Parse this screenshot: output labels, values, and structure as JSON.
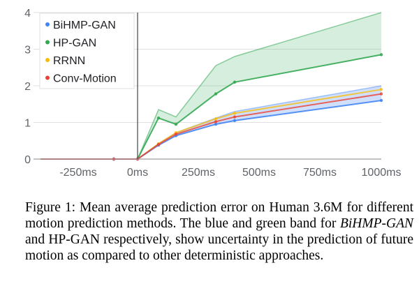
{
  "chart_data": {
    "type": "line",
    "x_ticks": [
      "-250ms",
      "0ms",
      "250ms",
      "500ms",
      "750ms",
      "1000ms"
    ],
    "y_ticks": [
      "0",
      "1",
      "2",
      "3",
      "4"
    ],
    "xlim": [
      -450,
      1000
    ],
    "ylim": [
      0,
      4
    ],
    "grid": true,
    "legend_position": "top-left",
    "series": [
      {
        "name": "BiHMP-GAN",
        "color": "#4285f4",
        "x": [
          -450,
          -100,
          0,
          80,
          160,
          320,
          400,
          1000
        ],
        "values": [
          0,
          0,
          0,
          0.38,
          0.64,
          0.95,
          1.05,
          1.6
        ],
        "band_upper": [
          0,
          0,
          0,
          0.42,
          0.72,
          1.12,
          1.3,
          2.0
        ]
      },
      {
        "name": "HP-GAN",
        "color": "#34a853",
        "x": [
          -450,
          -100,
          0,
          80,
          160,
          320,
          400,
          1000
        ],
        "values": [
          0,
          0,
          0,
          1.12,
          0.95,
          1.78,
          2.1,
          2.85
        ],
        "band_lower": [
          0,
          0,
          0,
          1.12,
          0.95,
          1.78,
          2.1,
          2.85
        ],
        "band_upper": [
          0,
          0,
          0,
          1.35,
          1.15,
          2.55,
          2.8,
          4.0
        ]
      },
      {
        "name": "RRNN",
        "color": "#fbbc04",
        "x": [
          -450,
          -100,
          0,
          80,
          160,
          320,
          400,
          1000
        ],
        "values": [
          0,
          0,
          0,
          0.42,
          0.72,
          1.1,
          1.25,
          1.9
        ]
      },
      {
        "name": "Conv-Motion",
        "color": "#ea4335",
        "x": [
          -450,
          -100,
          0,
          80,
          160,
          320,
          400,
          1000
        ],
        "values": [
          0,
          0,
          0,
          0.4,
          0.68,
          1.02,
          1.15,
          1.78
        ]
      }
    ]
  },
  "caption": {
    "figure_label": "Figure 1:",
    "text_before": "Mean average prediction error on Human 3.6M for different motion prediction methods. The blue and green band for ",
    "italic": "BiHMP-GAN",
    "text_after": " and HP-GAN respectively, show uncertainty in the prediction of future motion as compared to other deterministic approaches."
  }
}
